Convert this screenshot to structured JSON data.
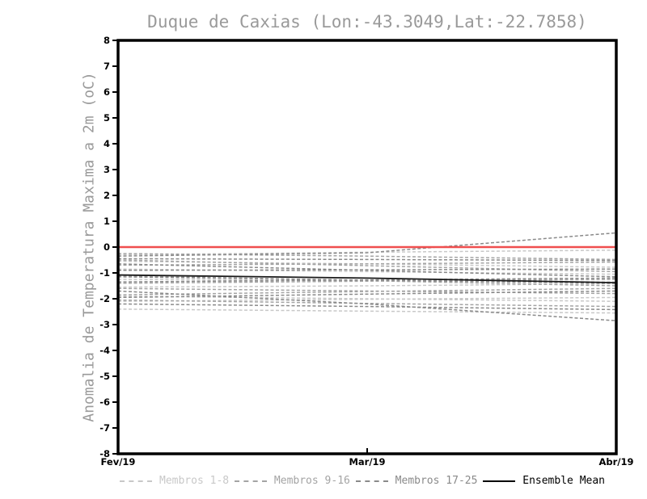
{
  "chart_data": {
    "type": "line",
    "title": "Duque de Caxias (Lon:-43.3049,Lat:-22.7858)",
    "ylabel": "Anomalia de Temperatura Maxima a 2m (oC)",
    "xlabel": "",
    "x_tick_labels": [
      "Fev/19",
      "Mar/19",
      "Abr/19"
    ],
    "y_ticks": [
      8,
      7,
      6,
      5,
      4,
      3,
      2,
      1,
      0,
      -1,
      -2,
      -3,
      -4,
      -5,
      -6,
      -7,
      -8
    ],
    "ylim": [
      -8,
      8
    ],
    "grid": false,
    "legend_position": "bottom",
    "frame_color": "#000000",
    "zero_line": {
      "value": 0,
      "color": "#ef4e4e"
    },
    "series_groups": [
      {
        "name": "Membros 1-8",
        "color": "#c8c8c8",
        "line_style": "dashed",
        "members": [
          [
            -0.3,
            -0.2,
            -0.12
          ],
          [
            -0.55,
            -0.65,
            -0.78
          ],
          [
            -0.85,
            -0.95,
            -1.05
          ],
          [
            -1.25,
            -1.3,
            -1.35
          ],
          [
            -1.55,
            -1.5,
            -1.42
          ],
          [
            -1.9,
            -2.0,
            -2.1
          ],
          [
            -2.1,
            -2.02,
            -1.95
          ],
          [
            -2.4,
            -2.48,
            -2.55
          ]
        ]
      },
      {
        "name": "Membros 9-16",
        "color": "#a4a4a4",
        "line_style": "dashed",
        "members": [
          [
            -0.25,
            -0.35,
            -0.48
          ],
          [
            -0.5,
            -0.72,
            -0.95
          ],
          [
            -0.7,
            -0.65,
            -0.58
          ],
          [
            -1.1,
            -1.3,
            -1.5
          ],
          [
            -1.4,
            -1.32,
            -1.25
          ],
          [
            -1.6,
            -1.7,
            -1.8
          ],
          [
            -1.85,
            -1.72,
            -1.6
          ],
          [
            -2.05,
            -2.18,
            -2.3
          ]
        ]
      },
      {
        "name": "Membros 17-25",
        "color": "#8a8a8a",
        "line_style": "dashed",
        "members": [
          [
            -0.35,
            -0.22,
            0.55
          ],
          [
            -0.45,
            -0.48,
            -0.52
          ],
          [
            -0.65,
            -0.9,
            -1.15
          ],
          [
            -0.9,
            -0.88,
            -0.85
          ],
          [
            -1.15,
            -1.28,
            -1.4
          ],
          [
            -1.35,
            -1.27,
            -1.2
          ],
          [
            -1.7,
            -2.2,
            -2.85
          ],
          [
            -1.95,
            -1.82,
            -1.7
          ],
          [
            -2.2,
            -2.3,
            -2.42
          ]
        ]
      }
    ],
    "ensemble_mean": {
      "name": "Ensemble Mean",
      "color": "#1a1a1a",
      "line_style": "solid",
      "values": [
        -1.08,
        -1.2,
        -1.38
      ]
    },
    "legend": [
      {
        "label": "Membros 1-8",
        "color": "#c8c8c8",
        "style": "dashed"
      },
      {
        "label": "Membros 9-16",
        "color": "#a4a4a4",
        "style": "dashed"
      },
      {
        "label": "Membros 17-25",
        "color": "#8a8a8a",
        "style": "dashed"
      },
      {
        "label": "Ensemble Mean",
        "color": "#000000",
        "style": "solid"
      }
    ]
  }
}
